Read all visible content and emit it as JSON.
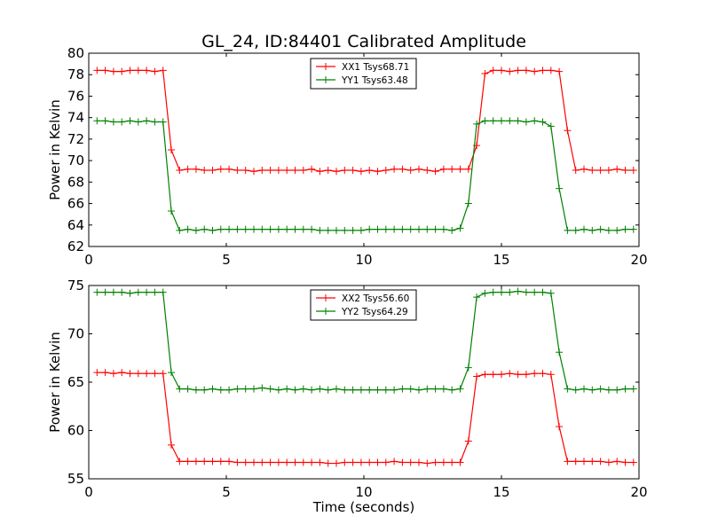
{
  "figure": {
    "title": "GL_24, ID:84401 Calibrated Amplitude"
  },
  "chart_data": [
    {
      "type": "line",
      "title": "GL_24, ID:84401 Calibrated Amplitude",
      "xlabel": "",
      "ylabel": "Power in Kelvin",
      "xlim": [
        0,
        20
      ],
      "ylim": [
        62,
        80
      ],
      "xticks": [
        0,
        5,
        10,
        15,
        20
      ],
      "yticks": [
        62,
        64,
        66,
        68,
        70,
        72,
        74,
        76,
        78,
        80
      ],
      "grid": false,
      "legend_position": "top-center",
      "x": [
        0.3,
        0.6,
        0.9,
        1.2,
        1.5,
        1.8,
        2.1,
        2.4,
        2.7,
        3.0,
        3.3,
        3.6,
        3.9,
        4.2,
        4.5,
        4.8,
        5.1,
        5.4,
        5.7,
        6.0,
        6.3,
        6.6,
        6.9,
        7.2,
        7.5,
        7.8,
        8.1,
        8.4,
        8.7,
        9.0,
        9.3,
        9.6,
        9.9,
        10.2,
        10.5,
        10.8,
        11.1,
        11.4,
        11.7,
        12.0,
        12.3,
        12.6,
        12.9,
        13.2,
        13.5,
        13.8,
        14.1,
        14.4,
        14.7,
        15.0,
        15.3,
        15.6,
        15.9,
        16.2,
        16.5,
        16.8,
        17.1,
        17.4,
        17.7,
        18.0,
        18.3,
        18.6,
        18.9,
        19.2,
        19.5,
        19.8
      ],
      "series": [
        {
          "name": "XX1 Tsys68.71",
          "color": "#ff0000",
          "values": [
            78.4,
            78.4,
            78.3,
            78.3,
            78.4,
            78.4,
            78.4,
            78.3,
            78.4,
            71.0,
            69.1,
            69.2,
            69.2,
            69.1,
            69.1,
            69.2,
            69.2,
            69.1,
            69.1,
            69.0,
            69.1,
            69.1,
            69.1,
            69.1,
            69.1,
            69.1,
            69.2,
            69.0,
            69.1,
            69.0,
            69.1,
            69.1,
            69.0,
            69.1,
            69.0,
            69.1,
            69.2,
            69.2,
            69.1,
            69.2,
            69.1,
            69.0,
            69.2,
            69.2,
            69.2,
            69.2,
            71.4,
            78.1,
            78.4,
            78.4,
            78.3,
            78.4,
            78.4,
            78.3,
            78.4,
            78.4,
            78.3,
            72.8,
            69.1,
            69.2,
            69.1,
            69.1,
            69.1,
            69.2,
            69.1,
            69.1
          ]
        },
        {
          "name": "YY1 Tsys63.48",
          "color": "#008000",
          "values": [
            73.7,
            73.7,
            73.6,
            73.6,
            73.7,
            73.6,
            73.7,
            73.6,
            73.6,
            65.3,
            63.5,
            63.6,
            63.5,
            63.6,
            63.5,
            63.6,
            63.6,
            63.6,
            63.6,
            63.6,
            63.6,
            63.6,
            63.6,
            63.6,
            63.6,
            63.6,
            63.6,
            63.5,
            63.5,
            63.5,
            63.5,
            63.5,
            63.5,
            63.6,
            63.6,
            63.6,
            63.6,
            63.6,
            63.6,
            63.6,
            63.6,
            63.6,
            63.6,
            63.5,
            63.7,
            66.0,
            73.4,
            73.7,
            73.7,
            73.7,
            73.7,
            73.7,
            73.6,
            73.7,
            73.6,
            73.2,
            67.4,
            63.5,
            63.5,
            63.6,
            63.5,
            63.6,
            63.5,
            63.5,
            63.6,
            63.6
          ]
        }
      ]
    },
    {
      "type": "line",
      "title": "",
      "xlabel": "Time (seconds)",
      "ylabel": "Power in Kelvin",
      "xlim": [
        0,
        20
      ],
      "ylim": [
        55,
        75
      ],
      "xticks": [
        0,
        5,
        10,
        15,
        20
      ],
      "yticks": [
        55,
        60,
        65,
        70,
        75
      ],
      "grid": false,
      "legend_position": "top-center",
      "x": [
        0.3,
        0.6,
        0.9,
        1.2,
        1.5,
        1.8,
        2.1,
        2.4,
        2.7,
        3.0,
        3.3,
        3.6,
        3.9,
        4.2,
        4.5,
        4.8,
        5.1,
        5.4,
        5.7,
        6.0,
        6.3,
        6.6,
        6.9,
        7.2,
        7.5,
        7.8,
        8.1,
        8.4,
        8.7,
        9.0,
        9.3,
        9.6,
        9.9,
        10.2,
        10.5,
        10.8,
        11.1,
        11.4,
        11.7,
        12.0,
        12.3,
        12.6,
        12.9,
        13.2,
        13.5,
        13.8,
        14.1,
        14.4,
        14.7,
        15.0,
        15.3,
        15.6,
        15.9,
        16.2,
        16.5,
        16.8,
        17.1,
        17.4,
        17.7,
        18.0,
        18.3,
        18.6,
        18.9,
        19.2,
        19.5,
        19.8
      ],
      "series": [
        {
          "name": "XX2 Tsys56.60",
          "color": "#ff0000",
          "values": [
            66.0,
            66.0,
            65.9,
            66.0,
            65.9,
            65.9,
            65.9,
            65.9,
            65.9,
            58.5,
            56.8,
            56.8,
            56.8,
            56.8,
            56.8,
            56.8,
            56.8,
            56.7,
            56.7,
            56.7,
            56.7,
            56.7,
            56.7,
            56.7,
            56.7,
            56.7,
            56.7,
            56.7,
            56.6,
            56.6,
            56.7,
            56.7,
            56.7,
            56.7,
            56.7,
            56.7,
            56.8,
            56.7,
            56.7,
            56.7,
            56.6,
            56.7,
            56.7,
            56.7,
            56.7,
            58.9,
            65.6,
            65.8,
            65.8,
            65.8,
            65.9,
            65.8,
            65.8,
            65.9,
            65.9,
            65.8,
            60.4,
            56.8,
            56.8,
            56.8,
            56.8,
            56.8,
            56.7,
            56.8,
            56.7,
            56.7
          ]
        },
        {
          "name": "YY2 Tsys64.29",
          "color": "#008000",
          "values": [
            74.3,
            74.3,
            74.3,
            74.3,
            74.2,
            74.3,
            74.3,
            74.3,
            74.3,
            66.0,
            64.3,
            64.3,
            64.2,
            64.2,
            64.3,
            64.2,
            64.2,
            64.3,
            64.3,
            64.3,
            64.4,
            64.3,
            64.2,
            64.3,
            64.2,
            64.3,
            64.2,
            64.3,
            64.2,
            64.3,
            64.2,
            64.2,
            64.2,
            64.2,
            64.2,
            64.2,
            64.2,
            64.3,
            64.3,
            64.2,
            64.3,
            64.3,
            64.3,
            64.2,
            64.3,
            66.5,
            73.8,
            74.2,
            74.3,
            74.3,
            74.3,
            74.4,
            74.3,
            74.3,
            74.3,
            74.2,
            68.1,
            64.3,
            64.2,
            64.3,
            64.2,
            64.3,
            64.2,
            64.2,
            64.3,
            64.3
          ]
        }
      ]
    }
  ]
}
